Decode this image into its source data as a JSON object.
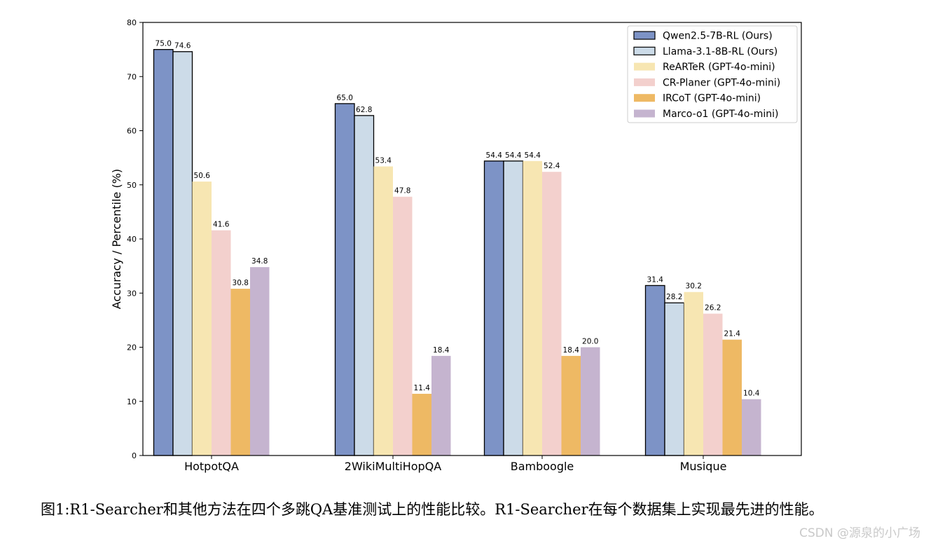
{
  "chart_data": {
    "type": "bar",
    "title": "",
    "xlabel": "",
    "ylabel": "Accuracy / Percentile (%)",
    "ylim": [
      0,
      80
    ],
    "yticks": [
      0,
      10,
      20,
      30,
      40,
      50,
      60,
      70,
      80
    ],
    "categories": [
      "HotpotQA",
      "2WikiMultiHopQA",
      "Bamboogle",
      "Musique"
    ],
    "legend_position": "top-right",
    "series": [
      {
        "name": "Qwen2.5-7B-RL (Ours)",
        "color": "#7d93c6",
        "edge": "#000000",
        "values": [
          75.0,
          65.0,
          54.4,
          31.4
        ],
        "labels": [
          "75.0",
          "65.0",
          "54.4",
          "31.4"
        ]
      },
      {
        "name": "Llama-3.1-8B-RL (Ours)",
        "color": "#ccdbe8",
        "edge": "#000000",
        "values": [
          74.6,
          62.8,
          54.4,
          28.2
        ],
        "labels": [
          "74.6",
          "62.8",
          "54.4",
          "28.2"
        ]
      },
      {
        "name": "ReARTeR (GPT-4o-mini)",
        "color": "#f7e6b2",
        "edge": "none",
        "values": [
          50.6,
          53.4,
          54.4,
          30.2
        ],
        "labels": [
          "50.6",
          "53.4",
          "54.4",
          "30.2"
        ]
      },
      {
        "name": "CR-Planer (GPT-4o-mini)",
        "color": "#f3d0cd",
        "edge": "none",
        "values": [
          41.6,
          47.8,
          52.4,
          26.2
        ],
        "labels": [
          "41.6",
          "47.8",
          "52.4",
          "26.2"
        ]
      },
      {
        "name": "IRCoT (GPT-4o-mini)",
        "color": "#eeb964",
        "edge": "none",
        "values": [
          30.8,
          11.4,
          18.4,
          21.4
        ],
        "labels": [
          "30.8",
          "11.4",
          "18.4",
          "21.4"
        ]
      },
      {
        "name": "Marco-o1 (GPT-4o-mini)",
        "color": "#c5b4cf",
        "edge": "none",
        "values": [
          34.8,
          18.4,
          20.0,
          10.4
        ],
        "labels": [
          "34.8",
          "18.4",
          "20.0",
          "10.4"
        ]
      }
    ]
  },
  "caption": {
    "text": "图1:R1-Searcher和其他方法在四个多跳QA基准测试上的性能比较。R1-Searcher在每个数据集上实现最先进的性能。"
  },
  "watermark": {
    "text": "CSDN @源泉的小广场"
  }
}
